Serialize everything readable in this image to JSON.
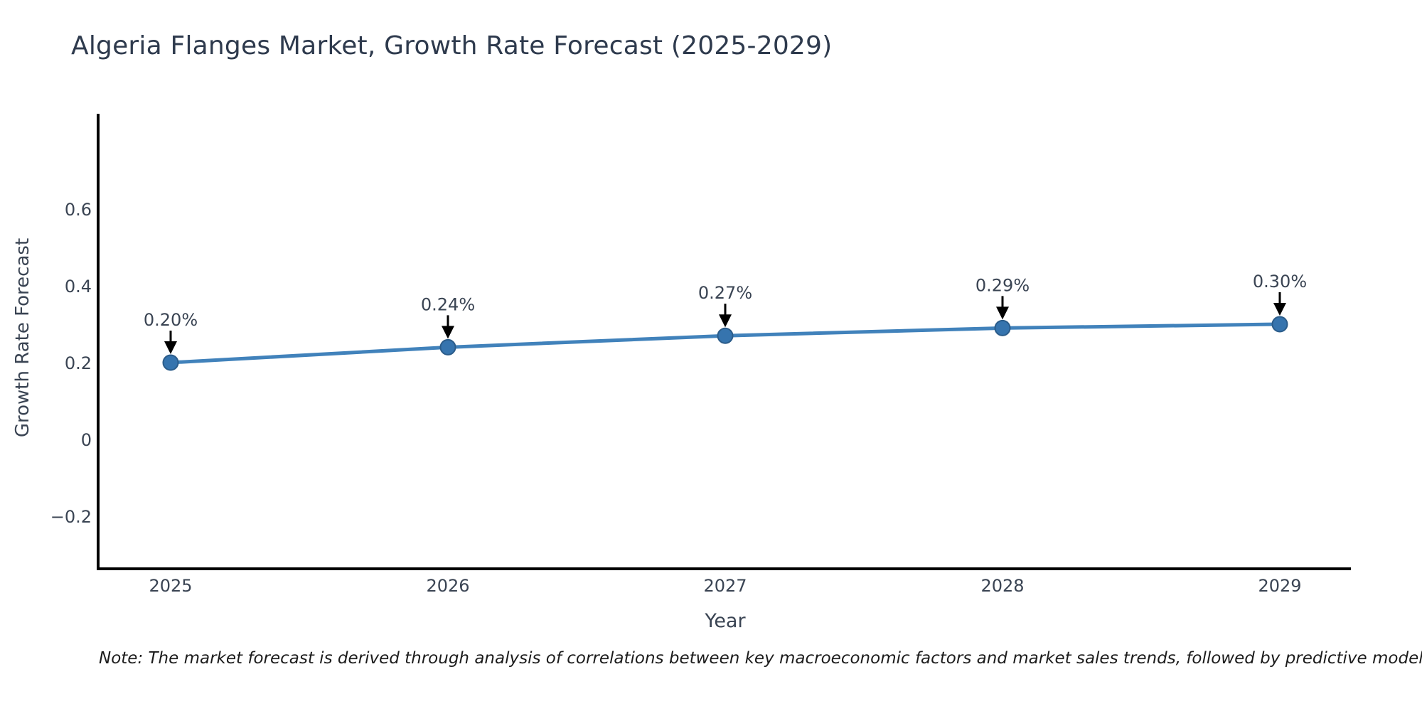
{
  "page": {
    "background": "#ffffff"
  },
  "chart_data": {
    "type": "line",
    "title": "Algeria Flanges Market, Growth Rate Forecast (2025-2029)",
    "xlabel": "Year",
    "ylabel": "Growth Rate Forecast",
    "x": [
      2025,
      2026,
      2027,
      2028,
      2029
    ],
    "x_tick_labels": [
      "2025",
      "2026",
      "2027",
      "2028",
      "2029"
    ],
    "series": [
      {
        "name": "Growth Rate Forecast",
        "values": [
          0.2,
          0.24,
          0.27,
          0.29,
          0.3
        ]
      }
    ],
    "point_labels": [
      "0.20%",
      "0.24%",
      "0.27%",
      "0.29%",
      "0.30%"
    ],
    "y_ticks": [
      {
        "value": 0.6,
        "label": "0.6"
      },
      {
        "value": 0.4,
        "label": "0.4"
      },
      {
        "value": 0.2,
        "label": "0.2"
      },
      {
        "value": 0.0,
        "label": "0"
      },
      {
        "value": -0.2,
        "label": "−0.2"
      }
    ],
    "ylim": [
      -0.34,
      0.85
    ],
    "xlim": [
      2024.74,
      2029.26
    ],
    "grid": false,
    "legend": null,
    "colors": {
      "line": "#4182bb",
      "marker_fill": "#3674ae",
      "marker_edge": "#2b5c8a",
      "axis": "#000000",
      "tick_text": "#3a4453",
      "title_text": "#2e3a4d",
      "annotation_text": "#3a4453",
      "annotation_arrow": "#000000",
      "note_text": "#1c1c1c"
    }
  },
  "note": {
    "text": "Note: The market forecast is derived through analysis of correlations between key macroeconomic factors and market sales trends, followed by predictive modeling to project future sales"
  }
}
